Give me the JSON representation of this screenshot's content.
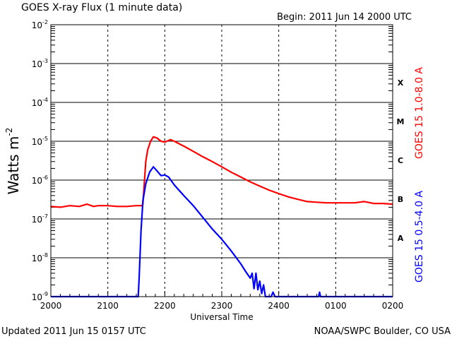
{
  "header": {
    "title": "GOES X-ray Flux (1 minute data)",
    "begin": "Begin: 2011 Jun 14 2000 UTC"
  },
  "footer": {
    "updated": "Updated 2011 Jun 15 0157 UTC",
    "credit": "NOAA/SWPC Boulder, CO USA"
  },
  "colors": {
    "long_channel": "#ff0000",
    "short_channel": "#0000ff",
    "axis": "#000000"
  },
  "chart_data": {
    "type": "line",
    "xlabel": "Universal Time",
    "ylabel": "Watts m",
    "ylabel_superscript": "-2",
    "yscale": "log",
    "ylim": [
      1e-09,
      0.01
    ],
    "xlim_minutes_after_2000": [
      0,
      360
    ],
    "grid": true,
    "x_ticks": [
      "2000",
      "2100",
      "2200",
      "2300",
      "2400",
      "0100",
      "0200"
    ],
    "y_ticks": [
      {
        "base": "10",
        "exp": "-2",
        "value": 0.01
      },
      {
        "base": "10",
        "exp": "-3",
        "value": 0.001
      },
      {
        "base": "10",
        "exp": "-4",
        "value": 0.0001
      },
      {
        "base": "10",
        "exp": "-5",
        "value": 1e-05
      },
      {
        "base": "10",
        "exp": "-6",
        "value": 1e-06
      },
      {
        "base": "10",
        "exp": "-7",
        "value": 1e-07
      },
      {
        "base": "10",
        "exp": "-8",
        "value": 1e-08
      },
      {
        "base": "10",
        "exp": "-9",
        "value": 1e-09
      }
    ],
    "flare_classes": [
      {
        "label": "X",
        "value": 0.00032
      },
      {
        "label": "M",
        "value": 3.2e-05
      },
      {
        "label": "C",
        "value": 3.2e-06
      },
      {
        "label": "B",
        "value": 3.2e-07
      },
      {
        "label": "A",
        "value": 3.2e-08
      }
    ],
    "series": [
      {
        "name": "GOES 15 1.0-8.0 A",
        "color": "#ff0000",
        "points": [
          [
            0,
            2.1e-07
          ],
          [
            10,
            2e-07
          ],
          [
            20,
            2.2e-07
          ],
          [
            30,
            2.1e-07
          ],
          [
            38,
            2.4e-07
          ],
          [
            45,
            2.1e-07
          ],
          [
            50,
            2.2e-07
          ],
          [
            60,
            2.2e-07
          ],
          [
            70,
            2.1e-07
          ],
          [
            80,
            2.1e-07
          ],
          [
            90,
            2.2e-07
          ],
          [
            96,
            2.2e-07
          ],
          [
            97,
            2.5e-07
          ],
          [
            98,
            6e-07
          ],
          [
            100,
            3e-06
          ],
          [
            102,
            6e-06
          ],
          [
            105,
            1e-05
          ],
          [
            108,
            1.3e-05
          ],
          [
            112,
            1.2e-05
          ],
          [
            116,
            1e-05
          ],
          [
            120,
            9.5e-06
          ],
          [
            126,
            1.1e-05
          ],
          [
            130,
            1e-05
          ],
          [
            140,
            7.5e-06
          ],
          [
            150,
            5.5e-06
          ],
          [
            160,
            4e-06
          ],
          [
            170,
            3e-06
          ],
          [
            180,
            2.2e-06
          ],
          [
            190,
            1.6e-06
          ],
          [
            200,
            1.2e-06
          ],
          [
            210,
            9e-07
          ],
          [
            220,
            7e-07
          ],
          [
            230,
            5.5e-07
          ],
          [
            240,
            4.5e-07
          ],
          [
            250,
            3.7e-07
          ],
          [
            260,
            3.2e-07
          ],
          [
            270,
            2.8e-07
          ],
          [
            280,
            2.7e-07
          ],
          [
            290,
            2.6e-07
          ],
          [
            300,
            2.6e-07
          ],
          [
            310,
            2.6e-07
          ],
          [
            320,
            2.6e-07
          ],
          [
            330,
            2.8e-07
          ],
          [
            340,
            2.5e-07
          ],
          [
            350,
            2.5e-07
          ],
          [
            360,
            2.4e-07
          ]
        ]
      },
      {
        "name": "GOES 15 0.5-4.0 A",
        "color": "#0000ff",
        "points": [
          [
            0,
            1e-09
          ],
          [
            10,
            1e-09
          ],
          [
            20,
            1e-09
          ],
          [
            30,
            1e-09
          ],
          [
            40,
            1e-09
          ],
          [
            50,
            1e-09
          ],
          [
            60,
            1e-09
          ],
          [
            70,
            1e-09
          ],
          [
            80,
            1e-09
          ],
          [
            88,
            1e-09
          ],
          [
            92,
            1e-09
          ],
          [
            93,
            3e-09
          ],
          [
            95,
            5e-08
          ],
          [
            97,
            3e-07
          ],
          [
            100,
            8e-07
          ],
          [
            104,
            1.6e-06
          ],
          [
            108,
            2.2e-06
          ],
          [
            112,
            1.7e-06
          ],
          [
            116,
            1.3e-06
          ],
          [
            120,
            1.35e-06
          ],
          [
            124,
            1.2e-06
          ],
          [
            130,
            7.5e-07
          ],
          [
            140,
            4e-07
          ],
          [
            150,
            2.2e-07
          ],
          [
            160,
            1.1e-07
          ],
          [
            170,
            5.5e-08
          ],
          [
            180,
            3e-08
          ],
          [
            190,
            1.5e-08
          ],
          [
            200,
            7e-09
          ],
          [
            205,
            4.5e-09
          ],
          [
            210,
            3e-09
          ],
          [
            212,
            4e-09
          ],
          [
            214,
            1.6e-09
          ],
          [
            216,
            4e-09
          ],
          [
            218,
            1.5e-09
          ],
          [
            220,
            2.5e-09
          ],
          [
            222,
            1.2e-09
          ],
          [
            224,
            2e-09
          ],
          [
            226,
            1e-09
          ],
          [
            232,
            1e-09
          ],
          [
            234,
            1.3e-09
          ],
          [
            236,
            1e-09
          ],
          [
            240,
            1e-09
          ],
          [
            260,
            1e-09
          ],
          [
            282,
            1e-09
          ],
          [
            283,
            1.3e-09
          ],
          [
            284,
            1e-09
          ],
          [
            300,
            1e-09
          ],
          [
            320,
            1e-09
          ],
          [
            340,
            1e-09
          ],
          [
            360,
            1e-09
          ]
        ]
      }
    ]
  }
}
